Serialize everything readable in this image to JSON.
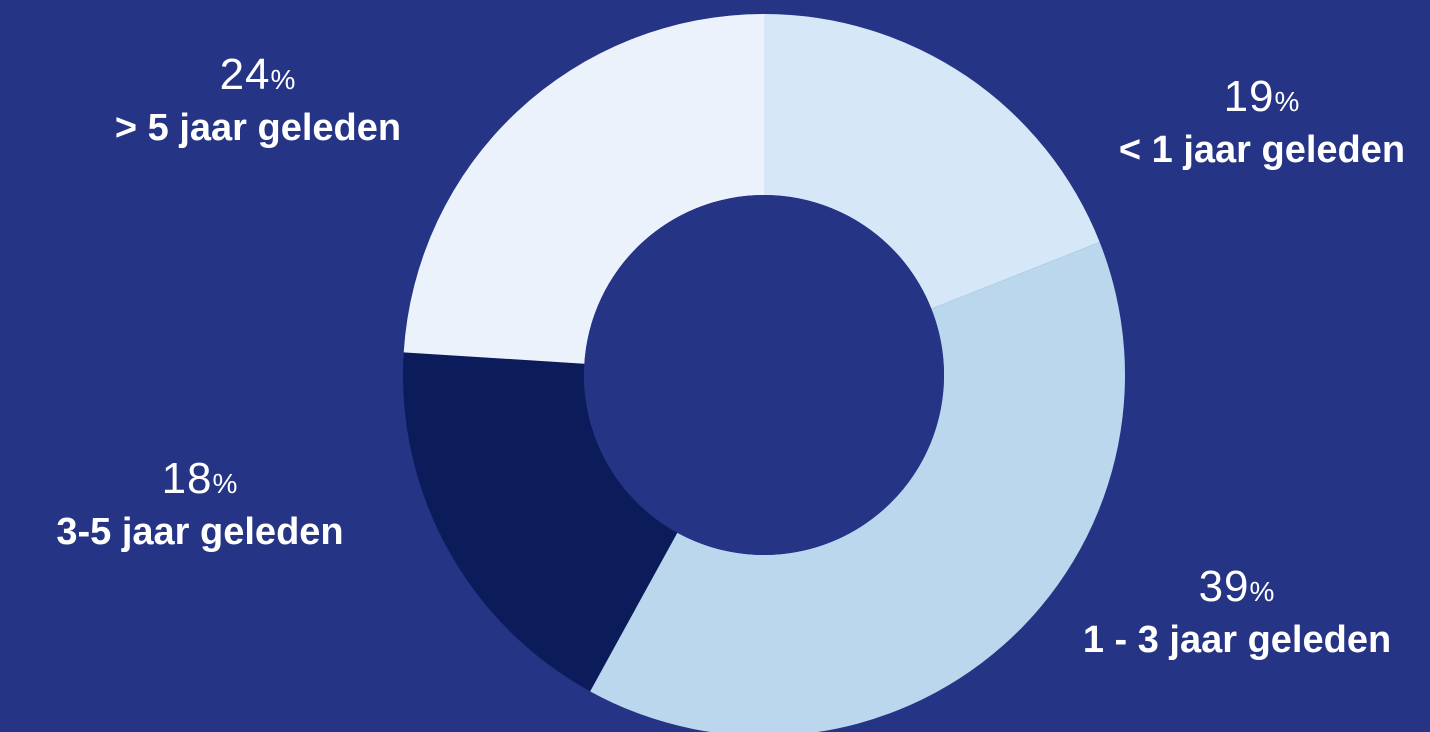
{
  "colors": {
    "background": "#253485",
    "hole": "#253485"
  },
  "chart_data": {
    "type": "pie",
    "variant": "donut",
    "start_angle_deg": 0,
    "direction": "clockwise",
    "slices": [
      {
        "id": "lt1",
        "category": "< 1 jaar geleden",
        "value": 19,
        "value_label": "19",
        "unit": "%",
        "color": "#D6E8F8"
      },
      {
        "id": "1to3",
        "category": "1 - 3 jaar geleden",
        "value": 39,
        "value_label": "39",
        "unit": "%",
        "color": "#BBD7EE"
      },
      {
        "id": "3to5",
        "category": "3-5 jaar geleden",
        "value": 18,
        "value_label": "18",
        "unit": "%",
        "color": "#0C1C5B"
      },
      {
        "id": "gt5",
        "category": "> 5 jaar geleden",
        "value": 24,
        "value_label": "24",
        "unit": "%",
        "color": "#ECF2FB"
      }
    ]
  }
}
